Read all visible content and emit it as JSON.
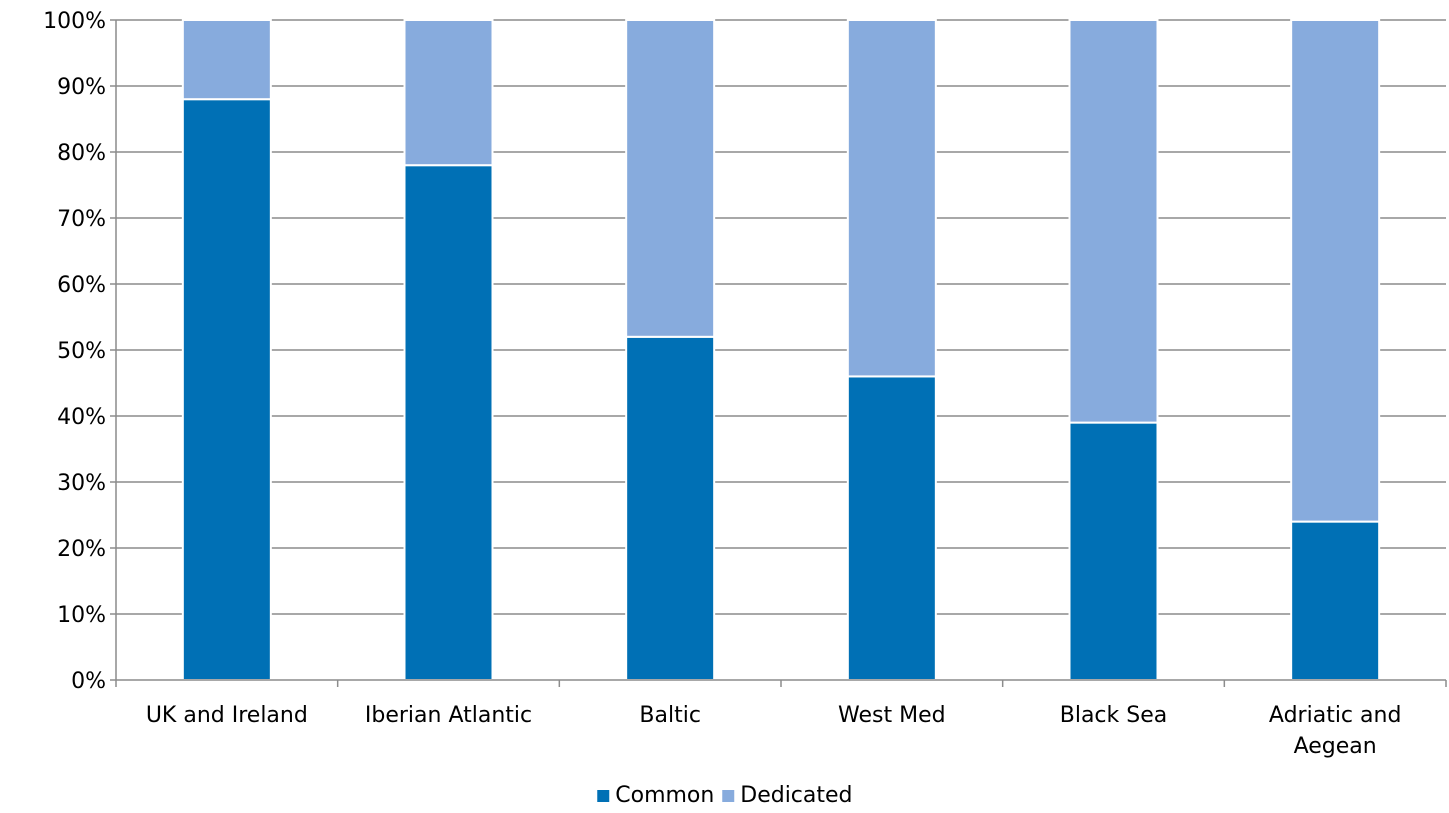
{
  "chart_data": {
    "type": "bar",
    "stacked": true,
    "categories": [
      "UK and Ireland",
      "Iberian Atlantic",
      "Baltic",
      "West Med",
      "Black Sea",
      "Adriatic and Aegean"
    ],
    "series": [
      {
        "name": "Common",
        "color": "#0070b5",
        "values": [
          88,
          78,
          52,
          46,
          39,
          24
        ]
      },
      {
        "name": "Dedicated",
        "color": "#87abdd",
        "values": [
          12,
          22,
          48,
          54,
          61,
          76
        ]
      }
    ],
    "y_ticks": [
      "0%",
      "10%",
      "20%",
      "30%",
      "40%",
      "50%",
      "60%",
      "70%",
      "80%",
      "90%",
      "100%"
    ],
    "ylim": [
      0,
      100
    ],
    "y_unit": "%",
    "grid": true,
    "legend_position": "bottom"
  }
}
